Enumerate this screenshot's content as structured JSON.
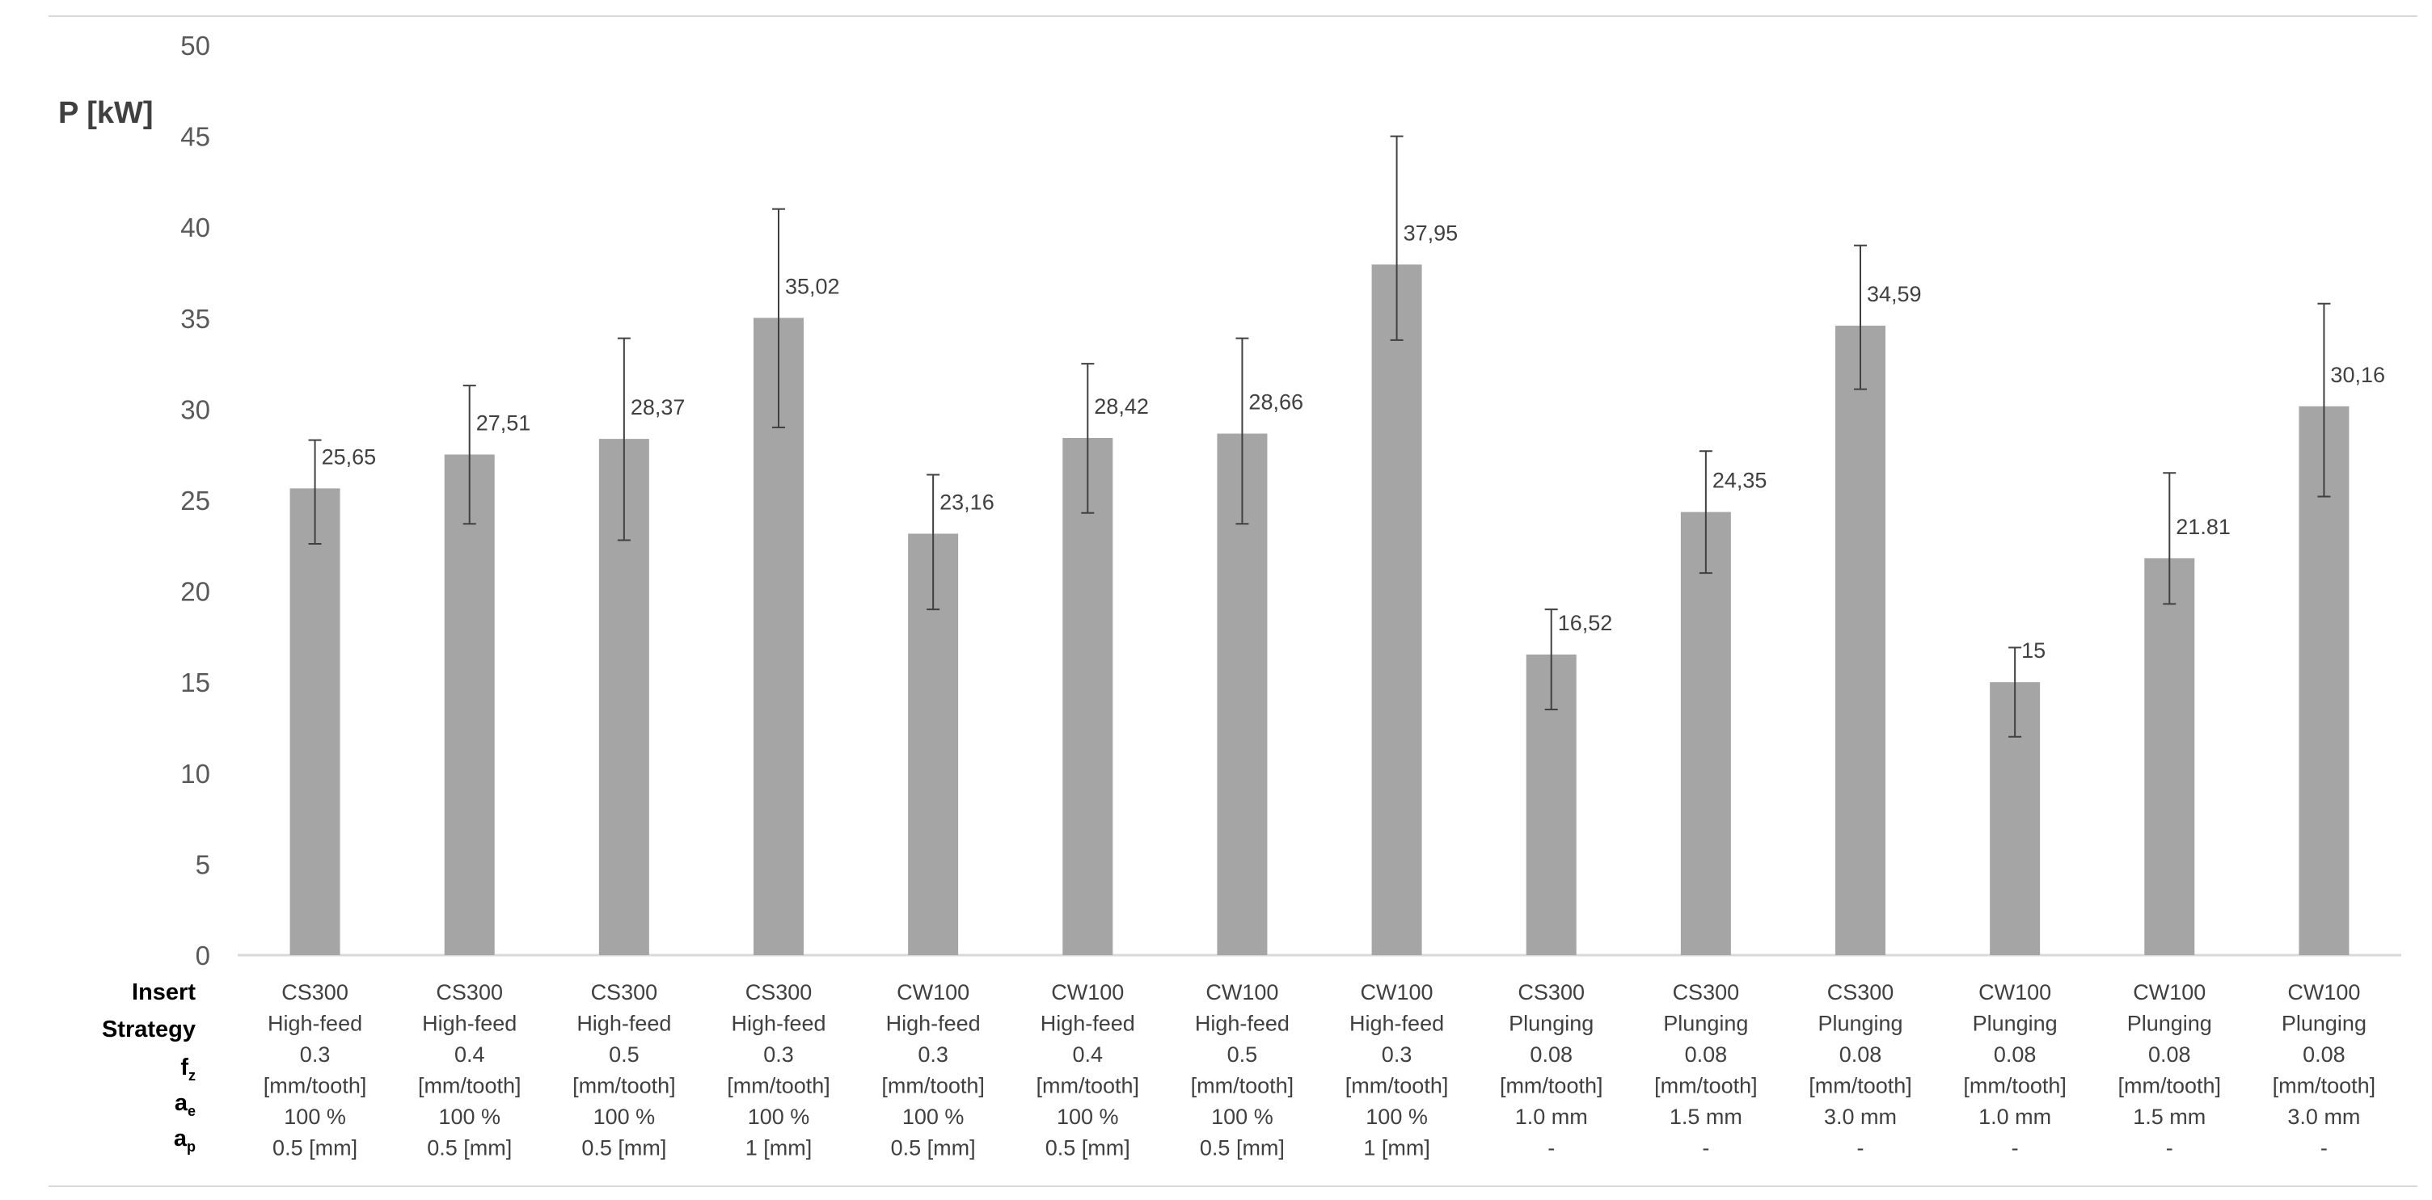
{
  "chart_data": {
    "type": "bar",
    "ylabel": "P [kW]",
    "ylim": [
      0,
      50
    ],
    "yticks": [
      "0",
      "5",
      "10",
      "15",
      "20",
      "25",
      "30",
      "35",
      "40",
      "45",
      "50"
    ],
    "grid": false,
    "bar_color": "#a5a5a5",
    "error_color": "#404040",
    "row_labels": [
      {
        "main": "Insert",
        "sub": ""
      },
      {
        "main": "Strategy",
        "sub": ""
      },
      {
        "main": "f",
        "sub": "z"
      },
      {
        "main": "a",
        "sub": "e"
      },
      {
        "main": "a",
        "sub": "p"
      }
    ],
    "categories": [
      {
        "lines": [
          "CS300",
          "High-feed",
          "0.3",
          "[mm/tooth]",
          "100 %",
          "0.5 [mm]"
        ]
      },
      {
        "lines": [
          "CS300",
          "High-feed",
          "0.4",
          "[mm/tooth]",
          "100 %",
          "0.5 [mm]"
        ]
      },
      {
        "lines": [
          "CS300",
          "High-feed",
          "0.5",
          "[mm/tooth]",
          "100 %",
          "0.5 [mm]"
        ]
      },
      {
        "lines": [
          "CS300",
          "High-feed",
          "0.3",
          "[mm/tooth]",
          "100 %",
          "1 [mm]"
        ]
      },
      {
        "lines": [
          "CW100",
          "High-feed",
          "0.3",
          "[mm/tooth]",
          "100 %",
          "0.5 [mm]"
        ]
      },
      {
        "lines": [
          "CW100",
          "High-feed",
          "0.4",
          "[mm/tooth]",
          "100 %",
          "0.5 [mm]"
        ]
      },
      {
        "lines": [
          "CW100",
          "High-feed",
          "0.5",
          "[mm/tooth]",
          "100 %",
          "0.5 [mm]"
        ]
      },
      {
        "lines": [
          "CW100",
          "High-feed",
          "0.3",
          "[mm/tooth]",
          "100 %",
          "1 [mm]"
        ]
      },
      {
        "lines": [
          "CS300",
          "Plunging",
          "0.08",
          "[mm/tooth]",
          "1.0 mm",
          "-"
        ]
      },
      {
        "lines": [
          "CS300",
          "Plunging",
          "0.08",
          "[mm/tooth]",
          "1.5 mm",
          "-"
        ]
      },
      {
        "lines": [
          "CS300",
          "Plunging",
          "0.08",
          "[mm/tooth]",
          "3.0 mm",
          "-"
        ]
      },
      {
        "lines": [
          "CW100",
          "Plunging",
          "0.08",
          "[mm/tooth]",
          "1.0 mm",
          "-"
        ]
      },
      {
        "lines": [
          "CW100",
          "Plunging",
          "0.08",
          "[mm/tooth]",
          "1.5 mm",
          "-"
        ]
      },
      {
        "lines": [
          "CW100",
          "Plunging",
          "0.08",
          "[mm/tooth]",
          "3.0 mm",
          "-"
        ]
      }
    ],
    "values": [
      25.65,
      27.51,
      28.37,
      35.02,
      23.16,
      28.42,
      28.66,
      37.95,
      16.52,
      24.35,
      34.59,
      15,
      21.81,
      30.16
    ],
    "value_labels": [
      "25,65",
      "27,51",
      "28,37",
      "35,02",
      "23,16",
      "28,42",
      "28,66",
      "37,95",
      "16,52",
      "24,35",
      "34,59",
      "15",
      "21.81",
      "30,16"
    ],
    "error_low": [
      22.6,
      23.7,
      22.8,
      29.0,
      19.0,
      24.3,
      23.7,
      33.8,
      13.5,
      21.0,
      31.1,
      12.0,
      19.3,
      25.2
    ],
    "error_high": [
      28.3,
      31.3,
      33.9,
      41.0,
      26.4,
      32.5,
      33.9,
      45.0,
      19.0,
      27.7,
      39.0,
      16.9,
      26.5,
      35.8
    ]
  }
}
